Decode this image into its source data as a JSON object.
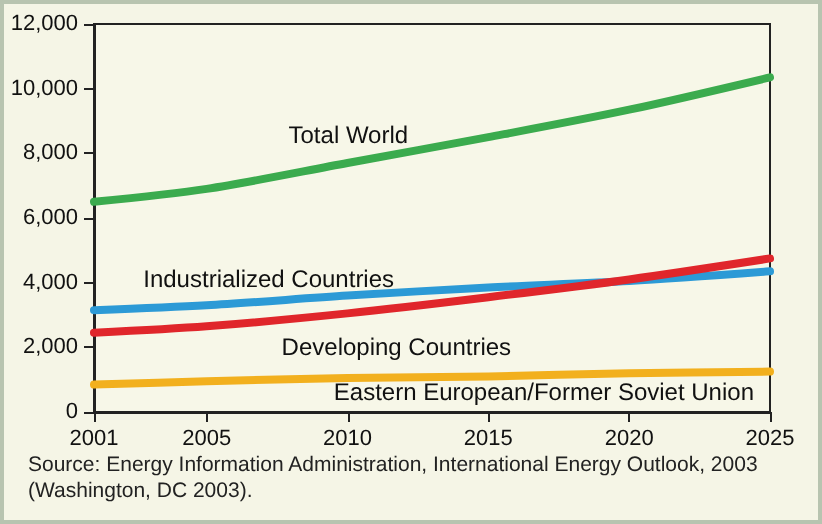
{
  "chart_data": {
    "type": "line",
    "x": [
      2001,
      2005,
      2010,
      2015,
      2020,
      2025
    ],
    "xlim": [
      2001,
      2025
    ],
    "xticks": [
      2001,
      2005,
      2010,
      2015,
      2020,
      2025
    ],
    "ylim": [
      0,
      12000
    ],
    "yticks": [
      0,
      {
        "value": 2000,
        "label": "2,000"
      },
      {
        "value": 4000,
        "label": "4,000"
      },
      {
        "value": 6000,
        "label": "6,000"
      },
      {
        "value": 8000,
        "label": "8,000"
      },
      {
        "value": 10000,
        "label": "10,000"
      },
      {
        "value": 12000,
        "label": "12,000"
      }
    ],
    "grid": false,
    "legend": false,
    "marker": "none",
    "line_style": "solid",
    "series": [
      {
        "name": "Total World",
        "color": "#3bab4e",
        "values": [
          6500,
          6900,
          7700,
          8500,
          9350,
          10350
        ]
      },
      {
        "name": "Industrialized Countries",
        "color": "#2c9ad6",
        "values": [
          3150,
          3300,
          3600,
          3850,
          4050,
          4350
        ]
      },
      {
        "name": "Developing Countries",
        "color": "#e0262b",
        "values": [
          2450,
          2650,
          3050,
          3550,
          4100,
          4750
        ]
      },
      {
        "name": "Eastern European/Former Soviet Union",
        "color": "#f2b01e",
        "values": [
          850,
          950,
          1050,
          1100,
          1200,
          1250
        ]
      }
    ],
    "annotations": [
      "Source: Energy Information Administration, International Energy Outlook, 2003 (Washington, DC 2003)."
    ]
  }
}
